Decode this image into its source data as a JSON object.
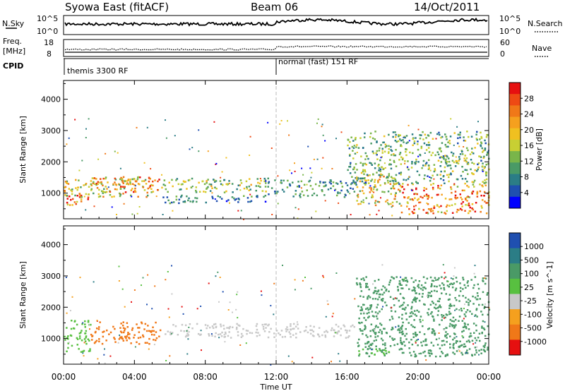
{
  "header": {
    "title": "Syowa East (fitACF)",
    "beam": "Beam 06",
    "date": "14/Oct/2011"
  },
  "panels": {
    "nsky_label": "N.Sky",
    "nsky_ticks": [
      "10^5",
      "10^0"
    ],
    "nsearch_label": "N.Search",
    "nsearch_ticks": [
      "10^5",
      "10^0"
    ],
    "freq_label_line1": "Freq.",
    "freq_label_line2": "[MHz]",
    "freq_ticks": [
      "18",
      "8"
    ],
    "nave_label": "Nave",
    "nave_ticks": [
      "60",
      "0"
    ],
    "cpid_label": "CPID",
    "cpid_segments": [
      {
        "start_hour": 0,
        "label": "themis 3300 RF"
      },
      {
        "start_hour": 12,
        "label": "normal (fast) 151 RF"
      }
    ]
  },
  "chart_data": [
    {
      "type": "heatmap",
      "title": "Power",
      "xlabel": "Time UT",
      "ylabel": "Slant Range [km]",
      "x_ticks": [
        "00:00",
        "04:00",
        "08:00",
        "12:00",
        "16:00",
        "20:00",
        "00:00"
      ],
      "xlim_hours": [
        0,
        24
      ],
      "ylim": [
        180,
        4600
      ],
      "y_ticks": [
        1000,
        2000,
        3000,
        4000
      ],
      "colorbar": {
        "label": "Power [dB]",
        "ticks": [
          "4",
          "8",
          "12",
          "16",
          "20",
          "24",
          "28"
        ],
        "colors": [
          "#0000ff",
          "#1f4fb0",
          "#2b7d86",
          "#4a9a66",
          "#79b54a",
          "#c8cf33",
          "#f0c020",
          "#f5a01e",
          "#f07818",
          "#ee4a14",
          "#e61010"
        ]
      },
      "bands": [
        {
          "t0": 0,
          "t1": 1.5,
          "r_lo": 600,
          "r_hi": 1000,
          "value": 26
        },
        {
          "t0": 0,
          "t1": 5,
          "r_lo": 900,
          "r_hi": 1500,
          "value": 18
        },
        {
          "t0": 1.5,
          "t1": 5.5,
          "r_lo": 1050,
          "r_hi": 1550,
          "value": 22
        },
        {
          "t0": 5.5,
          "t1": 11.5,
          "r_lo": 1050,
          "r_hi": 1500,
          "value": 14
        },
        {
          "t0": 5.5,
          "t1": 11.5,
          "r_lo": 700,
          "r_hi": 950,
          "value": 8
        },
        {
          "t0": 11.5,
          "t1": 16.5,
          "r_lo": 900,
          "r_hi": 1450,
          "value": 9
        },
        {
          "t0": 16.5,
          "t1": 19,
          "r_lo": 600,
          "r_hi": 1600,
          "value": 18
        },
        {
          "t0": 19,
          "t1": 24,
          "r_lo": 350,
          "r_hi": 1300,
          "value": 24
        },
        {
          "t0": 16,
          "t1": 24,
          "r_lo": 1300,
          "r_hi": 3000,
          "value": 12
        }
      ]
    },
    {
      "type": "heatmap",
      "title": "Velocity",
      "xlabel": "Time UT",
      "ylabel": "Slant Range [km]",
      "x_ticks": [
        "00:00",
        "04:00",
        "08:00",
        "12:00",
        "16:00",
        "20:00",
        "00:00"
      ],
      "xlim_hours": [
        0,
        24
      ],
      "ylim": [
        180,
        4600
      ],
      "y_ticks": [
        1000,
        2000,
        3000,
        4000
      ],
      "colorbar": {
        "label": "Velocity [m s^-1]",
        "ticks": [
          "1000",
          "500",
          "100",
          "25",
          "-25",
          "-100",
          "-500",
          "-1000"
        ],
        "colors": [
          "#1f4fb0",
          "#2b7d86",
          "#4a9a66",
          "#58c040",
          "#c8c8c8",
          "#f5a01e",
          "#f07818",
          "#e61010"
        ]
      },
      "bands": [
        {
          "t0": 0,
          "t1": 1.5,
          "r_lo": 600,
          "r_hi": 1600,
          "value": 40
        },
        {
          "t0": 1.5,
          "t1": 5.5,
          "r_lo": 850,
          "r_hi": 1550,
          "value": -150
        },
        {
          "t0": 5.5,
          "t1": 16.5,
          "r_lo": 1050,
          "r_hi": 1500,
          "value": 0
        },
        {
          "t0": 16.5,
          "t1": 24,
          "r_lo": 450,
          "r_hi": 1700,
          "value": 300
        },
        {
          "t0": 16.5,
          "t1": 18.5,
          "r_lo": 500,
          "r_hi": 700,
          "value": 50
        },
        {
          "t0": 16.5,
          "t1": 24,
          "r_lo": 1700,
          "r_hi": 3000,
          "value": 250
        }
      ]
    }
  ]
}
